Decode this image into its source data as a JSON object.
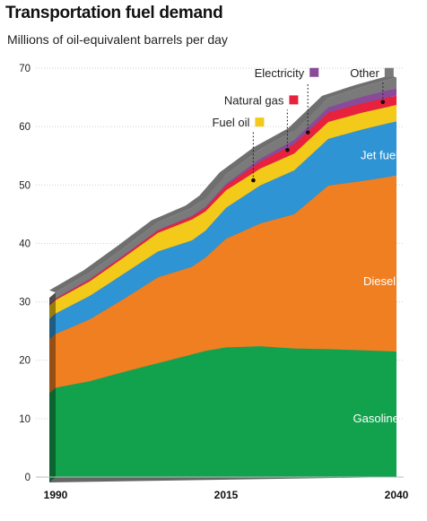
{
  "chart_data": {
    "type": "area",
    "title": "Transportation fuel demand",
    "subtitle": "Millions of oil-equivalent barrels per day",
    "ylim": [
      0,
      70
    ],
    "y_ticks": [
      "0",
      "10",
      "20",
      "30",
      "40",
      "50",
      "60",
      "70"
    ],
    "x_ticks": [
      "1990",
      "2015",
      "2040"
    ],
    "grid": true,
    "stacked": true,
    "x": [
      1990,
      1995,
      2000,
      2005,
      2010,
      2012,
      2015,
      2020,
      2025,
      2030,
      2035,
      2040
    ],
    "series": [
      {
        "name": "Gasoline",
        "color": "#12a24e",
        "values": [
          15.3,
          16.4,
          18.0,
          19.5,
          21.0,
          21.6,
          22.2,
          22.4,
          22.0,
          21.9,
          21.7,
          21.5
        ]
      },
      {
        "name": "Diesel",
        "color": "#f07f22",
        "values": [
          9.2,
          10.6,
          12.5,
          14.7,
          15.0,
          16.0,
          18.6,
          21.0,
          23.0,
          28.0,
          29.0,
          30.1
        ]
      },
      {
        "name": "Jet fuel",
        "color": "#2e94d3",
        "values": [
          3.5,
          4.0,
          4.3,
          4.4,
          4.5,
          4.6,
          5.3,
          6.5,
          7.5,
          8.0,
          8.8,
          9.3
        ]
      },
      {
        "name": "Fuel oil",
        "color": "#f3c91a",
        "values": [
          2.3,
          2.5,
          2.8,
          3.2,
          3.6,
          3.3,
          3.0,
          2.9,
          2.9,
          2.9,
          2.9,
          2.8
        ]
      },
      {
        "name": "Natural gas",
        "color": "#e8213c",
        "values": [
          0.2,
          0.3,
          0.3,
          0.4,
          0.5,
          0.6,
          0.8,
          1.2,
          1.6,
          1.6,
          1.6,
          1.6
        ]
      },
      {
        "name": "Electricity",
        "color": "#8a4a99",
        "values": [
          0.1,
          0.1,
          0.1,
          0.1,
          0.1,
          0.2,
          0.3,
          0.5,
          0.7,
          0.9,
          1.1,
          1.3
        ]
      },
      {
        "name": "Other",
        "color": "#7a7a7a",
        "values": [
          1.0,
          1.1,
          1.2,
          1.3,
          1.4,
          1.5,
          1.6,
          1.6,
          1.6,
          1.6,
          1.7,
          1.8
        ]
      }
    ],
    "callouts": [
      {
        "series": "Fuel oil",
        "label": "Fuel oil",
        "x": 2019,
        "y": 50.8,
        "label_y": 60
      },
      {
        "series": "Natural gas",
        "label": "Natural gas",
        "x": 2024,
        "y": 56,
        "label_y": 63.8
      },
      {
        "series": "Electricity",
        "label": "Electricity",
        "x": 2027,
        "y": 59,
        "label_y": 68.5
      },
      {
        "series": "Other",
        "label": "Other",
        "x": 2038,
        "y": 64.2,
        "label_y": 68.5
      }
    ],
    "inline_labels": [
      {
        "series": "Gasoline",
        "label": "Gasoline",
        "x": 2037,
        "y": 10
      },
      {
        "series": "Diesel",
        "label": "Diesel",
        "x": 2037.5,
        "y": 33.5
      },
      {
        "series": "Jet fuel",
        "label": "Jet fuel",
        "x": 2037.5,
        "y": 55
      }
    ]
  }
}
